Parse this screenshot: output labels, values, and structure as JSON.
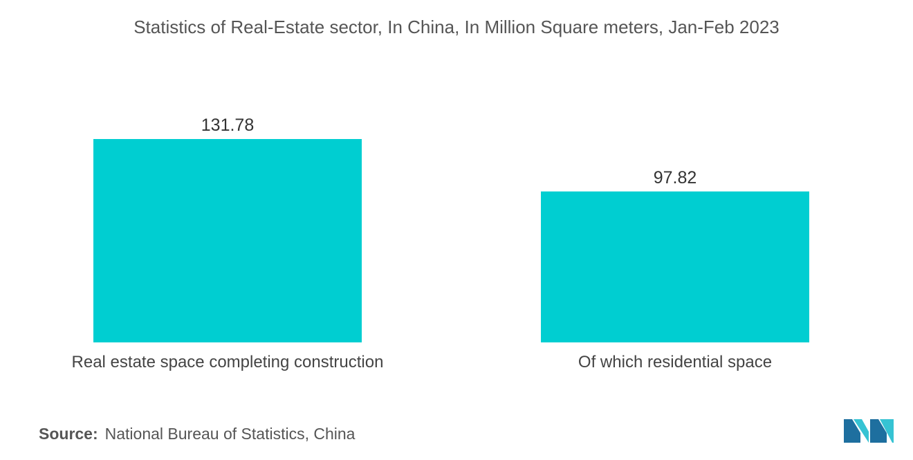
{
  "chart_data": {
    "type": "bar",
    "title": "Statistics of Real-Estate sector, In China, In Million Square meters, Jan-Feb 2023",
    "categories": [
      "Real estate space completing construction",
      "Of which residential space"
    ],
    "values": [
      131.78,
      97.82
    ],
    "value_labels": [
      "131.78",
      "97.82"
    ],
    "xlabel": "",
    "ylabel": "",
    "ylim": [
      0,
      131.78
    ],
    "grid": false,
    "legend": "none",
    "bar_color": "#00CED1"
  },
  "source": {
    "label": "Source:",
    "text": "National Bureau of Statistics, China"
  },
  "logo": {
    "icon": "mordor-intelligence-logo-icon",
    "color_dark": "#1E6F9F",
    "color_light": "#36C3D3"
  }
}
